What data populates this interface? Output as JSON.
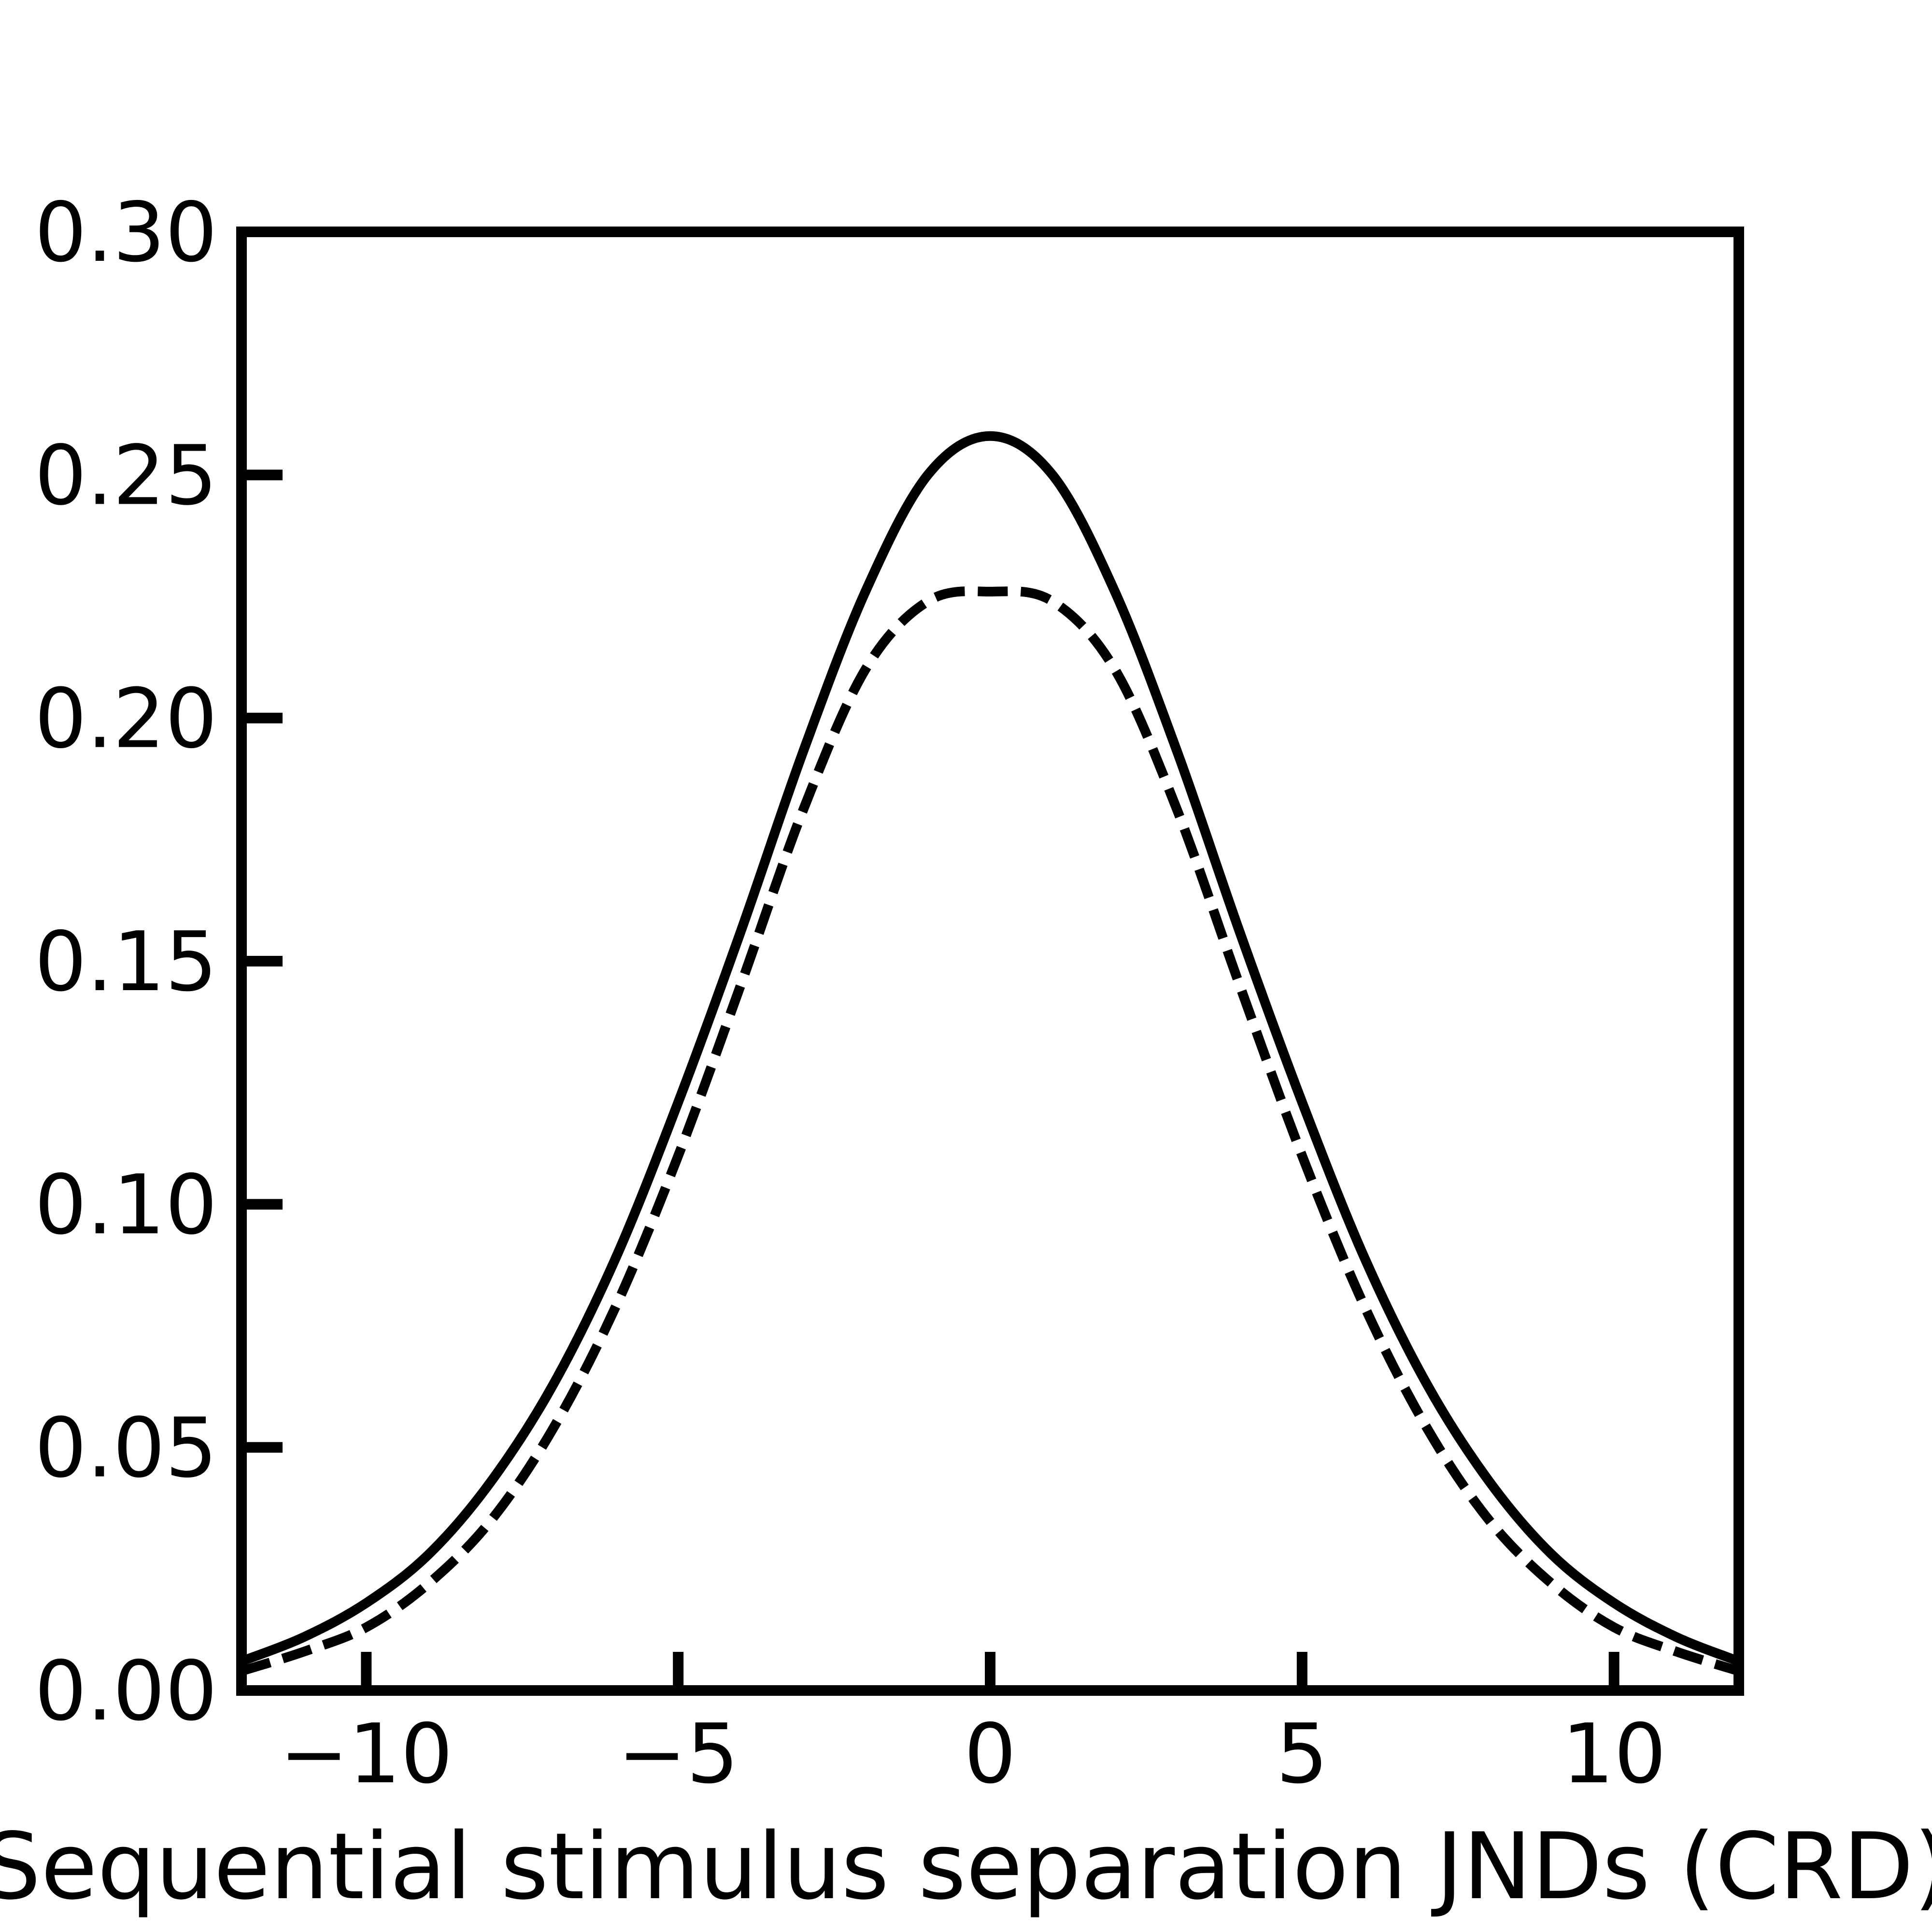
{
  "chart_data": {
    "type": "line",
    "title": "",
    "xlabel": "Sequential stimulus separation JNDs (CRD)",
    "ylabel": "",
    "xlim": [
      -12,
      12
    ],
    "ylim": [
      0,
      0.3
    ],
    "x_ticks": [
      -10,
      -5,
      0,
      5,
      10
    ],
    "x_tick_labels": [
      "−10",
      "−5",
      "0",
      "5",
      "10"
    ],
    "y_ticks": [
      0,
      0.05,
      0.1,
      0.15,
      0.2,
      0.25,
      0.3
    ],
    "y_tick_labels": [
      "0.00",
      "0.05",
      "0.10",
      "0.15",
      "0.20",
      "0.25",
      "0.30"
    ],
    "grid": false,
    "legend": "none",
    "series": [
      {
        "style": "solid",
        "color": "#000000",
        "x": [
          -12,
          -11,
          -10,
          -9,
          -8,
          -7,
          -6,
          -5,
          -4,
          -3,
          -2,
          -1,
          0,
          1,
          2,
          3,
          4,
          5,
          6,
          7,
          8,
          9,
          10,
          11,
          12
        ],
        "y": [
          0.006,
          0.011,
          0.018,
          0.028,
          0.043,
          0.063,
          0.089,
          0.121,
          0.156,
          0.193,
          0.226,
          0.25,
          0.258,
          0.25,
          0.226,
          0.193,
          0.156,
          0.121,
          0.089,
          0.063,
          0.043,
          0.028,
          0.018,
          0.011,
          0.006
        ]
      },
      {
        "style": "dashed",
        "color": "#000000",
        "x": [
          -12,
          -11,
          -10,
          -9,
          -8,
          -7,
          -6,
          -5,
          -4,
          -3,
          -2,
          -1,
          0,
          1,
          2,
          3,
          4,
          5,
          6,
          7,
          8,
          9,
          10,
          11,
          12
        ],
        "y": [
          0.004,
          0.008,
          0.013,
          0.022,
          0.035,
          0.054,
          0.079,
          0.11,
          0.145,
          0.181,
          0.21,
          0.224,
          0.226,
          0.224,
          0.21,
          0.181,
          0.145,
          0.11,
          0.079,
          0.054,
          0.035,
          0.022,
          0.013,
          0.008,
          0.004
        ]
      }
    ]
  }
}
